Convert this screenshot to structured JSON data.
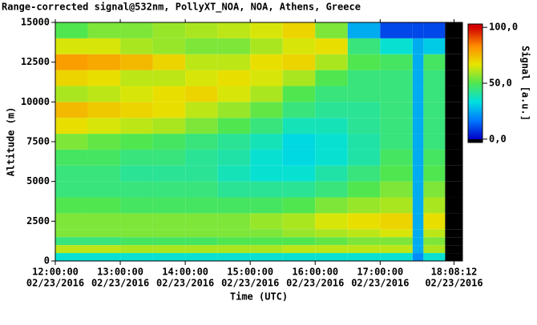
{
  "chart_data": {
    "type": "heatmap",
    "title": "Range-corrected signal@532nm, PollyXT_NOA, NOA, Athens, Greece",
    "x_label": "Time (UTC)",
    "y_label": "Altitude (m)",
    "xlim": [
      "2016-02-23T12:00:00",
      "2016-02-23T18:16:00"
    ],
    "xticks": [
      {
        "value": "2016-02-23T12:00:00",
        "label": [
          "12:00:00",
          "02/23/2016"
        ]
      },
      {
        "value": "2016-02-23T13:00:00",
        "label": [
          "13:00:00",
          "02/23/2016"
        ]
      },
      {
        "value": "2016-02-23T14:00:00",
        "label": [
          "14:00:00",
          "02/23/2016"
        ]
      },
      {
        "value": "2016-02-23T15:00:00",
        "label": [
          "15:00:00",
          "02/23/2016"
        ]
      },
      {
        "value": "2016-02-23T16:00:00",
        "label": [
          "16:00:00",
          "02/23/2016"
        ]
      },
      {
        "value": "2016-02-23T17:00:00",
        "label": [
          "17:00:00",
          "02/23/2016"
        ]
      },
      {
        "value": "2016-02-23T18:08:12",
        "label": [
          "18:08:12",
          "02/23/2016"
        ]
      }
    ],
    "ylim": [
      0,
      15000
    ],
    "yticks": [
      0,
      2500,
      5000,
      7500,
      10000,
      12500,
      15000
    ],
    "x_edges": [
      "2016-02-23T12:00:00",
      "2016-02-23T12:30:00",
      "2016-02-23T13:00:00",
      "2016-02-23T13:30:00",
      "2016-02-23T14:00:00",
      "2016-02-23T14:30:00",
      "2016-02-23T15:00:00",
      "2016-02-23T15:30:00",
      "2016-02-23T16:00:00",
      "2016-02-23T16:30:00",
      "2016-02-23T17:00:00",
      "2016-02-23T17:30:00",
      "2016-02-23T17:40:00",
      "2016-02-23T18:00:00",
      "2016-02-23T18:16:00"
    ],
    "y_edges": [
      0,
      500,
      1000,
      1500,
      2000,
      3000,
      4000,
      5000,
      6000,
      7000,
      8000,
      9000,
      10000,
      11000,
      12000,
      13000,
      14000,
      15000
    ],
    "z": [
      [
        35,
        35,
        35,
        35,
        35,
        35,
        35,
        35,
        35,
        35,
        35,
        20,
        35,
        null
      ],
      [
        62,
        62,
        60,
        60,
        60,
        60,
        60,
        62,
        62,
        62,
        62,
        25,
        60,
        null
      ],
      [
        45,
        45,
        48,
        48,
        48,
        50,
        50,
        50,
        52,
        55,
        55,
        25,
        55,
        null
      ],
      [
        55,
        55,
        55,
        55,
        55,
        55,
        55,
        58,
        60,
        62,
        65,
        25,
        62,
        null
      ],
      [
        55,
        55,
        55,
        55,
        55,
        55,
        58,
        60,
        65,
        68,
        70,
        25,
        68,
        null
      ],
      [
        50,
        50,
        48,
        48,
        48,
        48,
        48,
        50,
        55,
        58,
        60,
        25,
        60,
        null
      ],
      [
        45,
        45,
        45,
        45,
        45,
        42,
        42,
        42,
        45,
        50,
        55,
        25,
        55,
        null
      ],
      [
        45,
        45,
        42,
        42,
        42,
        38,
        35,
        35,
        40,
        45,
        50,
        25,
        50,
        null
      ],
      [
        48,
        48,
        45,
        45,
        42,
        40,
        35,
        32,
        35,
        40,
        48,
        25,
        48,
        null
      ],
      [
        55,
        52,
        50,
        48,
        45,
        42,
        38,
        32,
        35,
        40,
        45,
        25,
        45,
        null
      ],
      [
        68,
        65,
        62,
        60,
        55,
        50,
        45,
        38,
        38,
        42,
        45,
        25,
        45,
        null
      ],
      [
        75,
        72,
        70,
        68,
        62,
        58,
        52,
        45,
        42,
        42,
        45,
        25,
        45,
        null
      ],
      [
        60,
        62,
        65,
        68,
        70,
        65,
        60,
        50,
        45,
        45,
        45,
        25,
        45,
        null
      ],
      [
        70,
        68,
        62,
        62,
        65,
        68,
        65,
        60,
        50,
        45,
        45,
        25,
        45,
        null
      ],
      [
        80,
        78,
        75,
        70,
        62,
        62,
        68,
        70,
        60,
        50,
        48,
        25,
        48,
        null
      ],
      [
        65,
        65,
        60,
        58,
        55,
        55,
        60,
        65,
        68,
        45,
        35,
        25,
        30,
        null
      ],
      [
        50,
        55,
        55,
        58,
        60,
        62,
        65,
        70,
        55,
        25,
        10,
        10,
        10,
        null
      ]
    ],
    "colorbar": {
      "label": "Signal [a.u.]",
      "lim": [
        -3,
        103
      ],
      "ticks": [
        {
          "value": 0,
          "label": "0,0"
        },
        {
          "value": 50,
          "label": "50,0"
        },
        {
          "value": 100,
          "label": "100,0"
        }
      ],
      "colormap": [
        "#0000c8",
        "#0078ff",
        "#00e0e0",
        "#50e650",
        "#e6e600",
        "#ff8c00",
        "#d20000"
      ],
      "under_color": "#000000"
    }
  }
}
